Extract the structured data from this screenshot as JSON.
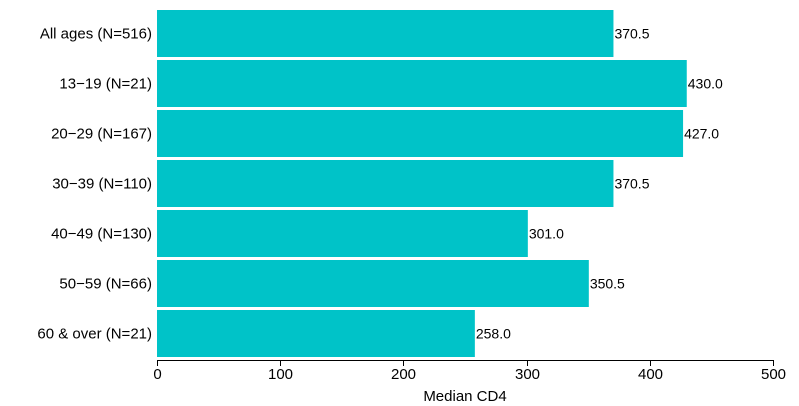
{
  "chart_data": {
    "type": "bar",
    "orientation": "horizontal",
    "categories": [
      "All ages (N=516)",
      "13−19 (N=21)",
      "20−29 (N=167)",
      "30−39 (N=110)",
      "40−49 (N=130)",
      "50−59 (N=66)",
      "60 & over (N=21)"
    ],
    "values": [
      370.5,
      430.0,
      427.0,
      370.5,
      301.0,
      350.5,
      258.0
    ],
    "value_labels": [
      "370.5",
      "430.0",
      "427.0",
      "370.5",
      "301.0",
      "350.5",
      "258.0"
    ],
    "xlabel": "Median CD4",
    "ylabel": "",
    "xlim": [
      0,
      500
    ],
    "xticks": [
      "0",
      "100",
      "200",
      "300",
      "400",
      "500"
    ],
    "grid": false,
    "colors": {
      "bar": "#00c3c8",
      "axis": "#000000"
    }
  }
}
